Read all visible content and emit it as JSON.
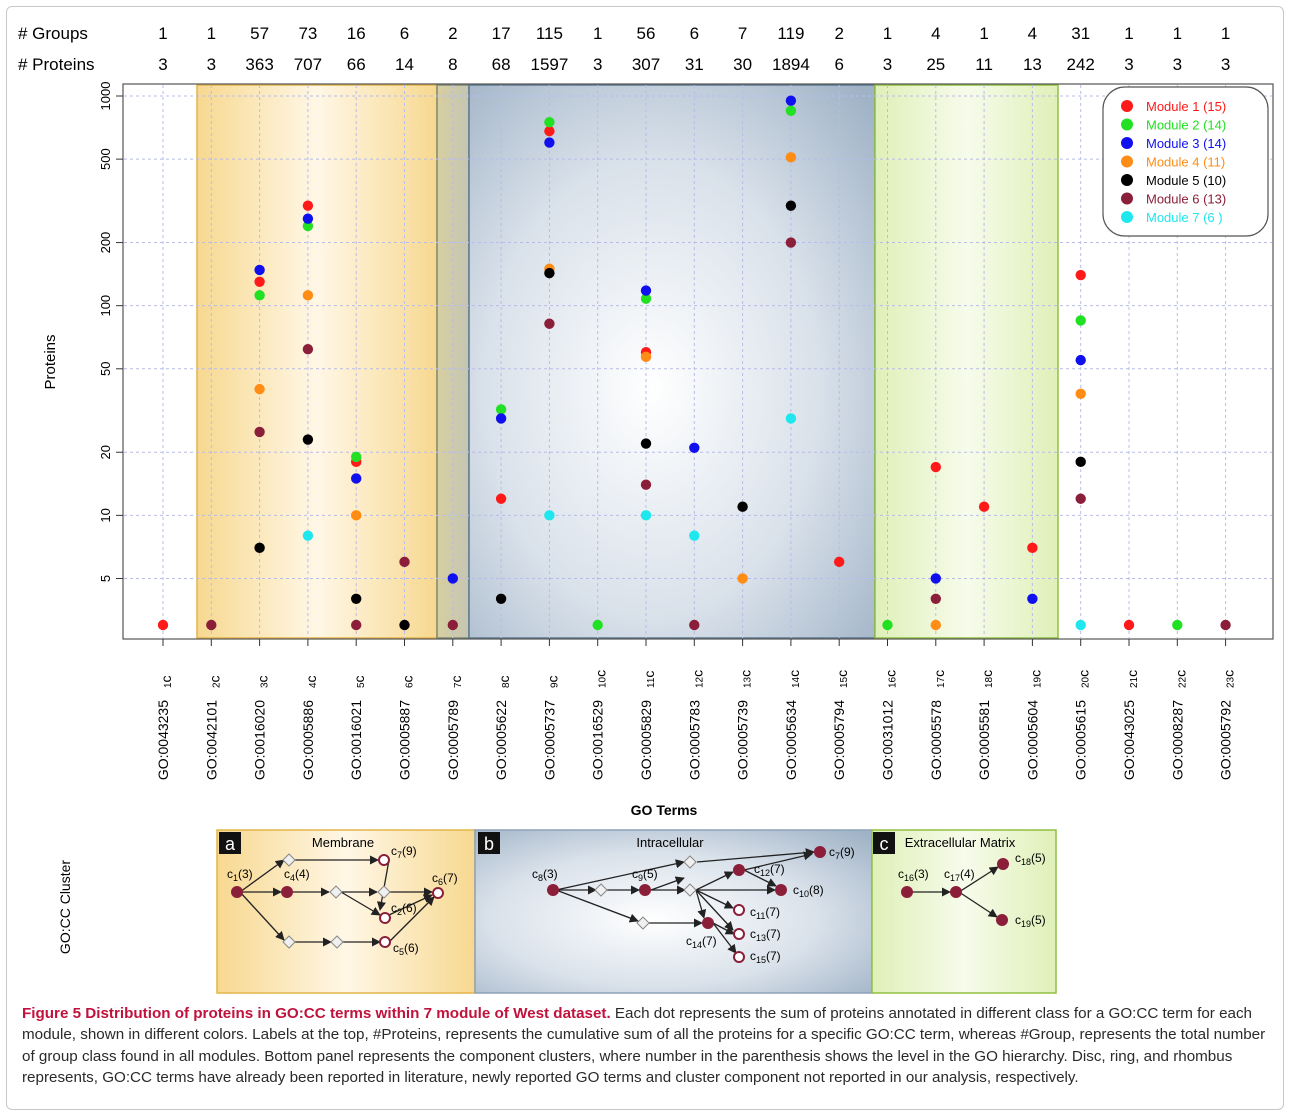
{
  "figure": {
    "caption_title": "Figure 5 Distribution of proteins in GO:CC terms within 7 module of West dataset.",
    "caption_body": " Each dot represents the sum of proteins annotated in different class for a GO:CC term for each module, shown in different colors. Labels at the top, #Proteins, represents the cumulative sum of all the proteins for a specific GO:CC term, whereas #Group, represents the total number of group class found in all modules. Bottom panel represents the component clusters, where number in the parenthesis shows the level in the GO hierarchy. Disc, ring, and rhombus represents, GO:CC terms have already been reported in literature, newly reported GO terms and cluster component not reported in our analysis, respectively."
  },
  "header_rows": {
    "groups_label": "# Groups",
    "proteins_label": "# Proteins",
    "groups": [
      "1",
      "1",
      "57",
      "73",
      "16",
      "6",
      "2",
      "17",
      "115",
      "1",
      "56",
      "6",
      "7",
      "119",
      "2",
      "1",
      "4",
      "1",
      "4",
      "31",
      "1",
      "1",
      "1"
    ],
    "proteins": [
      "3",
      "3",
      "363",
      "707",
      "66",
      "14",
      "8",
      "68",
      "1597",
      "3",
      "307",
      "31",
      "30",
      "1894",
      "6",
      "3",
      "25",
      "11",
      "13",
      "242",
      "3",
      "3",
      "3"
    ]
  },
  "chart_data": {
    "type": "scatter",
    "ylabel": "Proteins",
    "xlabel": "GO Terms",
    "y_scale": "log",
    "y_ticks": [
      5,
      10,
      20,
      50,
      100,
      200,
      500,
      1000
    ],
    "ylim": [
      2.6,
      1100
    ],
    "grid": true,
    "legend_position": "top-right",
    "categories": [
      {
        "c": "1",
        "go": "GO:0043235"
      },
      {
        "c": "2",
        "go": "GO:0042101"
      },
      {
        "c": "3",
        "go": "GO:0016020"
      },
      {
        "c": "4",
        "go": "GO:0005886"
      },
      {
        "c": "5",
        "go": "GO:0016021"
      },
      {
        "c": "6",
        "go": "GO:0005887"
      },
      {
        "c": "7",
        "go": "GO:0005789"
      },
      {
        "c": "8",
        "go": "GO:0005622"
      },
      {
        "c": "9",
        "go": "GO:0005737"
      },
      {
        "c": "10",
        "go": "GO:0016529"
      },
      {
        "c": "11",
        "go": "GO:0005829"
      },
      {
        "c": "12",
        "go": "GO:0005783"
      },
      {
        "c": "13",
        "go": "GO:0005739"
      },
      {
        "c": "14",
        "go": "GO:0005634"
      },
      {
        "c": "15",
        "go": "GO:0005794"
      },
      {
        "c": "16",
        "go": "GO:0031012"
      },
      {
        "c": "17",
        "go": "GO:0005578"
      },
      {
        "c": "18",
        "go": "GO:0005581"
      },
      {
        "c": "19",
        "go": "GO:0005604"
      },
      {
        "c": "20",
        "go": "GO:0005615"
      },
      {
        "c": "21",
        "go": "GO:0043025"
      },
      {
        "c": "22",
        "go": "GO:0008287"
      },
      {
        "c": "23",
        "go": "GO:0005792"
      }
    ],
    "series": [
      {
        "name": "Module 1 (15)",
        "color": "#ff1a1a",
        "points": [
          [
            1,
            3
          ],
          [
            3,
            130
          ],
          [
            4,
            300
          ],
          [
            5,
            18
          ],
          [
            8,
            12
          ],
          [
            9,
            680
          ],
          [
            11,
            60
          ],
          [
            15,
            6
          ],
          [
            17,
            17
          ],
          [
            18,
            11
          ],
          [
            19,
            7
          ],
          [
            20,
            140
          ],
          [
            21,
            3
          ]
        ]
      },
      {
        "name": "Module 2 (14)",
        "color": "#22e022",
        "points": [
          [
            3,
            112
          ],
          [
            4,
            240
          ],
          [
            5,
            19
          ],
          [
            8,
            32
          ],
          [
            9,
            750
          ],
          [
            10,
            3
          ],
          [
            11,
            108
          ],
          [
            14,
            850
          ],
          [
            16,
            3
          ],
          [
            20,
            85
          ],
          [
            22,
            3
          ]
        ]
      },
      {
        "name": "Module 3 (14)",
        "color": "#1010ee",
        "points": [
          [
            3,
            148
          ],
          [
            4,
            260
          ],
          [
            5,
            15
          ],
          [
            7,
            5
          ],
          [
            8,
            29
          ],
          [
            9,
            600
          ],
          [
            11,
            118
          ],
          [
            12,
            21
          ],
          [
            14,
            950
          ],
          [
            17,
            5
          ],
          [
            19,
            4
          ],
          [
            20,
            55
          ]
        ]
      },
      {
        "name": "Module 4 (11)",
        "color": "#ff8c14",
        "points": [
          [
            3,
            40
          ],
          [
            4,
            112
          ],
          [
            5,
            10
          ],
          [
            9,
            150
          ],
          [
            11,
            57
          ],
          [
            13,
            5
          ],
          [
            14,
            510
          ],
          [
            17,
            3
          ],
          [
            20,
            38
          ]
        ]
      },
      {
        "name": "Module 5 (10)",
        "color": "#000000",
        "points": [
          [
            3,
            7
          ],
          [
            4,
            23
          ],
          [
            5,
            4
          ],
          [
            6,
            3
          ],
          [
            8,
            4
          ],
          [
            9,
            143
          ],
          [
            11,
            22
          ],
          [
            13,
            11
          ],
          [
            14,
            300
          ],
          [
            20,
            18
          ]
        ]
      },
      {
        "name": "Module 6 (13)",
        "color": "#8b1f3a",
        "points": [
          [
            2,
            3
          ],
          [
            3,
            25
          ],
          [
            4,
            62
          ],
          [
            5,
            3
          ],
          [
            6,
            6
          ],
          [
            7,
            3
          ],
          [
            9,
            82
          ],
          [
            11,
            14
          ],
          [
            12,
            3
          ],
          [
            14,
            200
          ],
          [
            17,
            4
          ],
          [
            20,
            12
          ],
          [
            23,
            3
          ]
        ]
      },
      {
        "name": "Module 7 (6 )",
        "color": "#1ee8ee",
        "points": [
          [
            4,
            8
          ],
          [
            9,
            10
          ],
          [
            11,
            10
          ],
          [
            12,
            8
          ],
          [
            14,
            29
          ],
          [
            20,
            3
          ]
        ]
      }
    ]
  },
  "bottom_panel": {
    "side_label": "GO:CC Cluster",
    "panels": [
      {
        "letter": "a",
        "title": "Membrane",
        "nodes": [
          {
            "c": "1",
            "lvl": "(3)"
          },
          {
            "c": "4",
            "lvl": "(4)"
          },
          {
            "c": "7",
            "lvl": "(9)"
          },
          {
            "c": "2",
            "lvl": "(6)"
          },
          {
            "c": "6",
            "lvl": "(7)"
          },
          {
            "c": "5",
            "lvl": "(6)"
          }
        ]
      },
      {
        "letter": "b",
        "title": "Intracellular",
        "nodes": [
          {
            "c": "8",
            "lvl": "(3)"
          },
          {
            "c": "9",
            "lvl": "(5)"
          },
          {
            "c": "7",
            "lvl": "(9)"
          },
          {
            "c": "12",
            "lvl": "(7)"
          },
          {
            "c": "10",
            "lvl": "(8)"
          },
          {
            "c": "11",
            "lvl": "(7)"
          },
          {
            "c": "13",
            "lvl": "(7)"
          },
          {
            "c": "15",
            "lvl": "(7)"
          },
          {
            "c": "14",
            "lvl": "(7)"
          }
        ]
      },
      {
        "letter": "c",
        "title": "Extracellular Matrix",
        "nodes": [
          {
            "c": "16",
            "lvl": "(3)"
          },
          {
            "c": "17",
            "lvl": "(4)"
          },
          {
            "c": "18",
            "lvl": "(5)"
          },
          {
            "c": "19",
            "lvl": "(5)"
          }
        ]
      }
    ]
  }
}
